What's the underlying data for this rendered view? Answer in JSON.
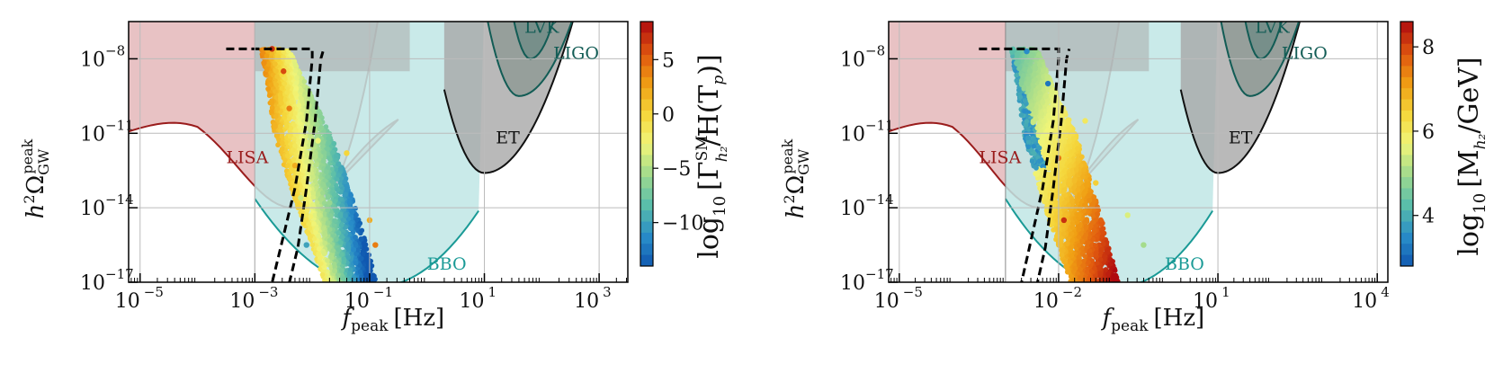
{
  "chart_data": [
    {
      "type": "scatter",
      "xscale": "log",
      "yscale": "log",
      "xlim_log10": [
        -5.2,
        3.5
      ],
      "ylim_log10": [
        -17,
        -6.5
      ],
      "xticks_log10": [
        -5,
        -3,
        -1,
        1,
        3
      ],
      "yticks_log10": [
        -8,
        -11,
        -14,
        -17
      ],
      "xtick_labels": [
        "10",
        "10",
        "10",
        "10",
        "10"
      ],
      "xtick_exponents": [
        "−5",
        "−3",
        "−1",
        "1",
        "3"
      ],
      "ytick_labels": [
        "10",
        "10",
        "10",
        "10"
      ],
      "ytick_exponents": [
        "−8",
        "−11",
        "−14",
        "−17"
      ],
      "xlabel": "f",
      "xlabel_sub": "peak",
      "xlabel_unit": "[Hz]",
      "ylabel": "h",
      "ylabel_sup": "2",
      "ylabel_omega": "Ω",
      "ylabel_sub": "GW",
      "ylabel_supsup": "peak",
      "grid": true,
      "colorbar": {
        "label_prefix": "log",
        "label_sub": "10",
        "label_body": "[Γ",
        "label_sup": "SM",
        "label_sub2": "h₂",
        "label_end": "/H(T",
        "label_sub3": "p",
        "label_close": ")]",
        "range": [
          -14,
          8.5
        ],
        "ticks": [
          5,
          0,
          -5,
          -10
        ],
        "tick_labels": [
          "5",
          "0",
          "−5",
          "−10"
        ],
        "levels": 22
      },
      "regions": [
        {
          "name": "LISA",
          "color": "#e3b3b6"
        },
        {
          "name": "BBO",
          "color": "#bde3e3"
        },
        {
          "name": "ET",
          "color": "#9a9a9a"
        },
        {
          "name": "LIGO",
          "color": "#7f8f8c"
        },
        {
          "name": "LVK",
          "color": "#6f8a85"
        }
      ],
      "scatter_points": [
        {
          "x_log10": -2.7,
          "y_log10": -7.6,
          "c": 7
        },
        {
          "x_log10": -2.5,
          "y_log10": -8.5,
          "c": 6
        },
        {
          "x_log10": -2.4,
          "y_log10": -10.0,
          "c": 4
        },
        {
          "x_log10": -2.3,
          "y_log10": -12.3,
          "c": 2
        },
        {
          "x_log10": -2.2,
          "y_log10": -13.6,
          "c": -4
        },
        {
          "x_log10": -2.1,
          "y_log10": -15.5,
          "c": -10
        },
        {
          "x_log10": -1.9,
          "y_log10": -11.3,
          "c": -3
        },
        {
          "x_log10": -1.7,
          "y_log10": -13.8,
          "c": -6
        },
        {
          "x_log10": -1.4,
          "y_log10": -11.8,
          "c": 0
        },
        {
          "x_log10": -1.0,
          "y_log10": -14.5,
          "c": 2
        },
        {
          "x_log10": -0.9,
          "y_log10": -15.5,
          "c": 4
        }
      ]
    },
    {
      "type": "scatter",
      "xscale": "log",
      "yscale": "log",
      "xlim_log10": [
        -5.2,
        4.2
      ],
      "ylim_log10": [
        -17,
        -6.5
      ],
      "xticks_log10": [
        -5,
        -2,
        1,
        4
      ],
      "yticks_log10": [
        -8,
        -11,
        -14,
        -17
      ],
      "xtick_labels": [
        "10",
        "10",
        "10",
        "10"
      ],
      "xtick_exponents": [
        "−5",
        "−2",
        "1",
        "4"
      ],
      "ytick_labels": [
        "10",
        "10",
        "10",
        "10"
      ],
      "ytick_exponents": [
        "−8",
        "−11",
        "−14",
        "−17"
      ],
      "xlabel": "f",
      "xlabel_sub": "peak",
      "xlabel_unit": "[Hz]",
      "ylabel": "h",
      "ylabel_sup": "2",
      "ylabel_omega": "Ω",
      "ylabel_sub": "GW",
      "ylabel_supsup": "peak",
      "grid": true,
      "colorbar": {
        "label_prefix": "log",
        "label_sub": "10",
        "label_body": "[M",
        "label_sub2": "h₂",
        "label_end": "/GeV]",
        "range": [
          2.8,
          8.6
        ],
        "ticks": [
          8,
          6,
          4
        ],
        "tick_labels": [
          "8",
          "6",
          "4"
        ],
        "levels": 22
      },
      "regions": [
        {
          "name": "LISA",
          "color": "#e3b3b6"
        },
        {
          "name": "BBO",
          "color": "#bde3e3"
        },
        {
          "name": "ET",
          "color": "#9a9a9a"
        },
        {
          "name": "LIGO",
          "color": "#7f8f8c"
        },
        {
          "name": "LVK",
          "color": "#6f8a85"
        }
      ],
      "scatter_points": [
        {
          "x_log10": -2.6,
          "y_log10": -7.7,
          "c": 3.5
        },
        {
          "x_log10": -2.2,
          "y_log10": -9.0,
          "c": 3.2
        },
        {
          "x_log10": -2.0,
          "y_log10": -12.0,
          "c": 7.5
        },
        {
          "x_log10": -1.9,
          "y_log10": -14.5,
          "c": 8.2
        },
        {
          "x_log10": -1.5,
          "y_log10": -10.5,
          "c": 6.0
        },
        {
          "x_log10": -1.3,
          "y_log10": -13.0,
          "c": 6.5
        },
        {
          "x_log10": -0.7,
          "y_log10": -14.3,
          "c": 5.5
        },
        {
          "x_log10": -0.4,
          "y_log10": -15.5,
          "c": 5.0
        }
      ]
    }
  ]
}
